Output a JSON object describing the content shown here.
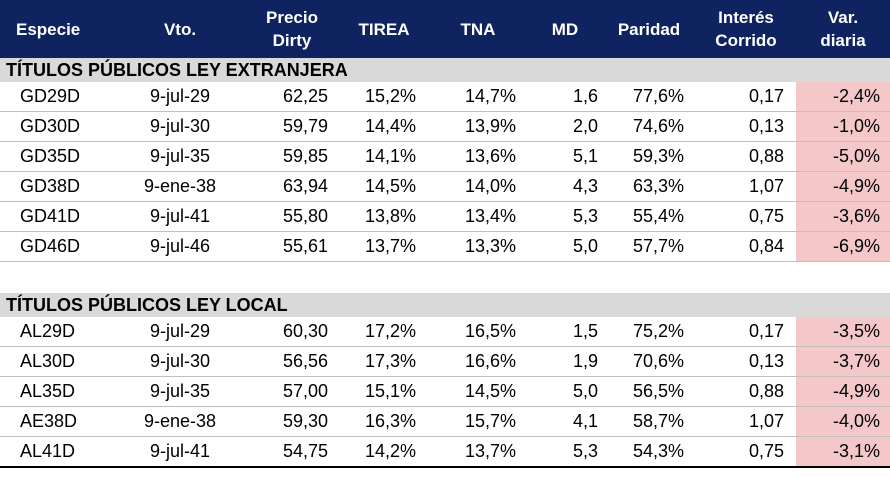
{
  "header": {
    "especie": "Especie",
    "vto": "Vto.",
    "precio_line1": "Precio",
    "precio_line2": "Dirty",
    "tirea": "TIREA",
    "tna": "TNA",
    "md": "MD",
    "paridad": "Paridad",
    "interes_line1": "Interés",
    "interes_line2": "Corrido",
    "var_line1": "Var.",
    "var_line2": "diaria"
  },
  "sections": [
    {
      "title": "TÍTULOS PÚBLICOS LEY EXTRANJERA",
      "rows": [
        {
          "especie": "GD29D",
          "vto": "9-jul-29",
          "precio": "62,25",
          "tirea": "15,2%",
          "tna": "14,7%",
          "md": "1,6",
          "paridad": "77,6%",
          "interes": "0,17",
          "var": "-2,4%"
        },
        {
          "especie": "GD30D",
          "vto": "9-jul-30",
          "precio": "59,79",
          "tirea": "14,4%",
          "tna": "13,9%",
          "md": "2,0",
          "paridad": "74,6%",
          "interes": "0,13",
          "var": "-1,0%"
        },
        {
          "especie": "GD35D",
          "vto": "9-jul-35",
          "precio": "59,85",
          "tirea": "14,1%",
          "tna": "13,6%",
          "md": "5,1",
          "paridad": "59,3%",
          "interes": "0,88",
          "var": "-5,0%"
        },
        {
          "especie": "GD38D",
          "vto": "9-ene-38",
          "precio": "63,94",
          "tirea": "14,5%",
          "tna": "14,0%",
          "md": "4,3",
          "paridad": "63,3%",
          "interes": "1,07",
          "var": "-4,9%"
        },
        {
          "especie": "GD41D",
          "vto": "9-jul-41",
          "precio": "55,80",
          "tirea": "13,8%",
          "tna": "13,4%",
          "md": "5,3",
          "paridad": "55,4%",
          "interes": "0,75",
          "var": "-3,6%"
        },
        {
          "especie": "GD46D",
          "vto": "9-jul-46",
          "precio": "55,61",
          "tirea": "13,7%",
          "tna": "13,3%",
          "md": "5,0",
          "paridad": "57,7%",
          "interes": "0,84",
          "var": "-6,9%"
        }
      ]
    },
    {
      "title": "TÍTULOS PÚBLICOS LEY LOCAL",
      "rows": [
        {
          "especie": "AL29D",
          "vto": "9-jul-29",
          "precio": "60,30",
          "tirea": "17,2%",
          "tna": "16,5%",
          "md": "1,5",
          "paridad": "75,2%",
          "interes": "0,17",
          "var": "-3,5%"
        },
        {
          "especie": "AL30D",
          "vto": "9-jul-30",
          "precio": "56,56",
          "tirea": "17,3%",
          "tna": "16,6%",
          "md": "1,9",
          "paridad": "70,6%",
          "interes": "0,13",
          "var": "-3,7%"
        },
        {
          "especie": "AL35D",
          "vto": "9-jul-35",
          "precio": "57,00",
          "tirea": "15,1%",
          "tna": "14,5%",
          "md": "5,0",
          "paridad": "56,5%",
          "interes": "0,88",
          "var": "-4,9%"
        },
        {
          "especie": "AE38D",
          "vto": "9-ene-38",
          "precio": "59,30",
          "tirea": "16,3%",
          "tna": "15,7%",
          "md": "4,1",
          "paridad": "58,7%",
          "interes": "1,07",
          "var": "-4,0%"
        },
        {
          "especie": "AL41D",
          "vto": "9-jul-41",
          "precio": "54,75",
          "tirea": "14,2%",
          "tna": "13,7%",
          "md": "5,3",
          "paridad": "54,3%",
          "interes": "0,75",
          "var": "-3,1%"
        }
      ]
    }
  ],
  "colors": {
    "header_bg": "#0f2361",
    "section_bg": "#d9d9d9",
    "negative_bg": "#f4c7c9",
    "negative_text": "#c0272d"
  }
}
